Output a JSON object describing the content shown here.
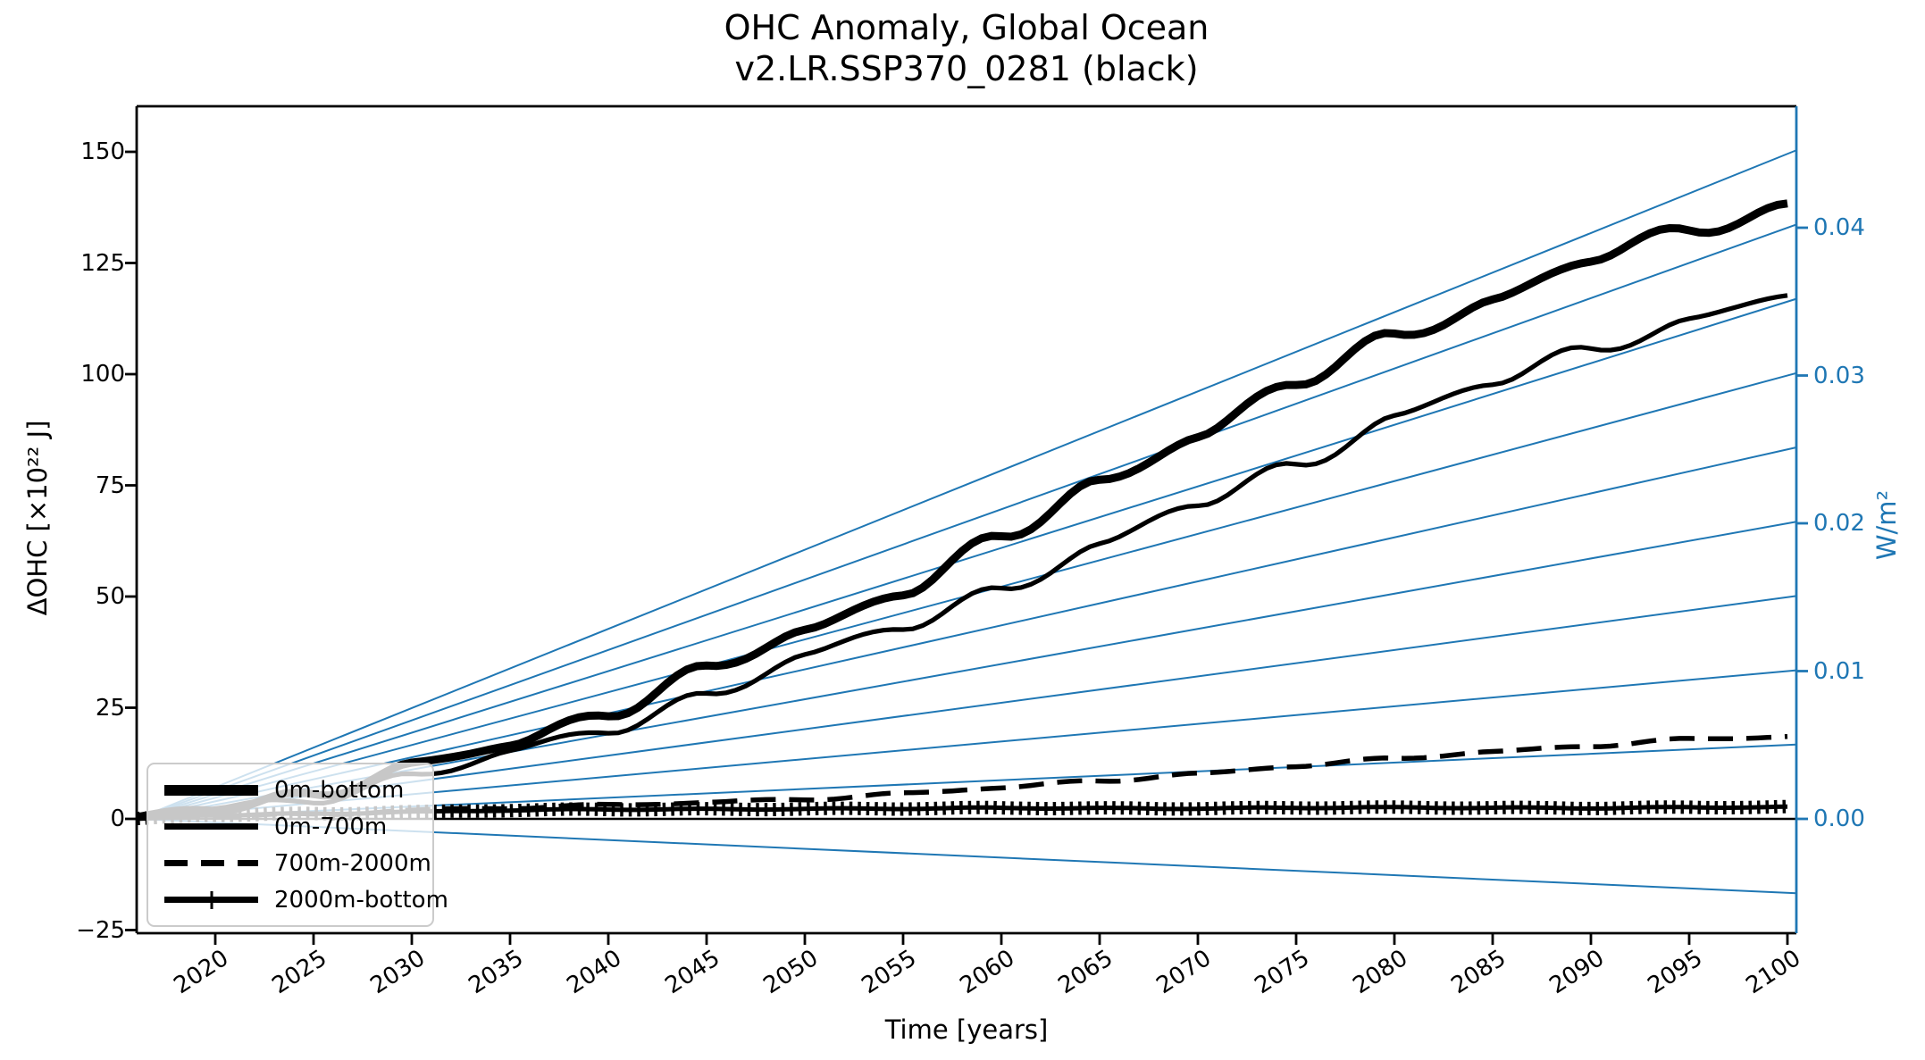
{
  "title": {
    "line1": "OHC Anomaly, Global Ocean",
    "line2": "v2.LR.SSP370_0281 (black)"
  },
  "axes": {
    "x_label": "Time [years]",
    "y_left_label": "ΔOHC [×10²² J]",
    "y_right_label": "W/m²",
    "x_tick_values": [
      2020,
      2025,
      2030,
      2035,
      2040,
      2045,
      2050,
      2055,
      2060,
      2065,
      2070,
      2075,
      2080,
      2085,
      2090,
      2095,
      2100
    ],
    "x_tick_labels": [
      "2020",
      "2025",
      "2030",
      "2035",
      "2040",
      "2045",
      "2050",
      "2055",
      "2060",
      "2065",
      "2070",
      "2075",
      "2080",
      "2085",
      "2090",
      "2095",
      "2100"
    ],
    "y_left_tick_values": [
      150,
      125,
      100,
      75,
      50,
      25,
      0,
      -25
    ],
    "y_left_tick_labels": [
      "150",
      "125",
      "100",
      "75",
      "50",
      "25",
      "0",
      "−25"
    ],
    "y_right_tick_values": [
      0.04,
      0.03,
      0.02,
      0.01,
      0.0
    ],
    "y_right_tick_labels": [
      "0.04",
      "0.03",
      "0.02",
      "0.01",
      "0.00"
    ],
    "accent_blue": "#1f77b4",
    "axis_color": "#000000"
  },
  "chart_data": {
    "type": "line",
    "title": "OHC Anomaly, Global Ocean — v2.LR.SSP370_0281 (black)",
    "xlabel": "Time [years]",
    "ylabel_left": "ΔOHC [×10²² J]",
    "ylabel_right": "W/m²",
    "xlim": [
      2016,
      2100.5
    ],
    "ylim_left": [
      -25.7,
      160.2
    ],
    "grid": false,
    "legend_position": "lower left",
    "years": [
      2015,
      2020,
      2025,
      2030,
      2035,
      2040,
      2045,
      2050,
      2055,
      2060,
      2065,
      2070,
      2075,
      2080,
      2085,
      2090,
      2095,
      2100
    ],
    "series": [
      {
        "name": "0m-bottom",
        "color": "#000000",
        "style": "solid-thick",
        "values": [
          0,
          2.5,
          6,
          11,
          17,
          24.5,
          33,
          42,
          52,
          63,
          75,
          87,
          98,
          108,
          117,
          126,
          132,
          138
        ]
      },
      {
        "name": "0m-700m",
        "color": "#000000",
        "style": "solid",
        "values": [
          0,
          2,
          5,
          9.5,
          14.5,
          20.5,
          28,
          36,
          43.5,
          52,
          61,
          71,
          80,
          90,
          98,
          106,
          112,
          118
        ]
      },
      {
        "name": "700m-2000m",
        "color": "#000000",
        "style": "dashed",
        "values": [
          0,
          0.5,
          1,
          2,
          2.5,
          3,
          3.7,
          4.5,
          5.7,
          7,
          8.5,
          10.2,
          12,
          13.5,
          15,
          16.5,
          18,
          18.5
        ]
      },
      {
        "name": "2000m-bottom",
        "color": "#000000",
        "style": "solid-plus-markers",
        "values": [
          0,
          0.8,
          1.2,
          1.6,
          1.9,
          2.1,
          2.2,
          2.3,
          2.3,
          2.4,
          2.4,
          2.4,
          2.5,
          2.5,
          2.5,
          2.5,
          2.6,
          2.6
        ]
      }
    ],
    "reference_lines": {
      "description": "straight heating-rate guide lines fanning from (2016, 0), labeled by right axis in W/m²",
      "color": "#1f77b4",
      "values_wm2": [
        -0.005,
        0.0,
        0.005,
        0.01,
        0.015,
        0.02,
        0.025,
        0.03,
        0.035,
        0.04,
        0.045
      ]
    },
    "zero_line": {
      "value": 0,
      "color": "#000000"
    }
  }
}
